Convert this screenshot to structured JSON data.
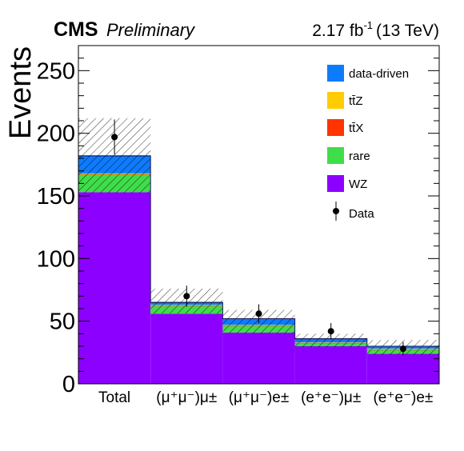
{
  "header": {
    "experiment": "CMS",
    "status": "Preliminary",
    "lumi": "2.17 fb",
    "lumi_exp": "-1",
    "energy": "(13 TeV)"
  },
  "chart_data": {
    "type": "bar",
    "stacked": true,
    "ylabel": "Events",
    "ylim": [
      0,
      270
    ],
    "yticks": [
      0,
      50,
      100,
      150,
      200,
      250
    ],
    "categories": [
      "Total",
      "(μ⁺μ⁻)μ±",
      "(μ⁺μ⁻)e±",
      "(e⁺e⁻)μ±",
      "(e⁺e⁻)e±"
    ],
    "series": [
      {
        "name": "WZ",
        "color": "#8c00ff",
        "values": [
          153,
          56,
          41,
          30,
          24
        ]
      },
      {
        "name": "rare",
        "color": "#3fdd4a",
        "values": [
          14,
          6,
          5,
          2,
          3
        ]
      },
      {
        "name": "ttX",
        "color": "#ff3300",
        "values": [
          0.5,
          0.5,
          0.5,
          0.5,
          0.5
        ]
      },
      {
        "name": "ttZ",
        "color": "#ffcc00",
        "values": [
          0.5,
          0.5,
          0.5,
          0.5,
          0.5
        ]
      },
      {
        "name": "data-driven",
        "color": "#0e7bff",
        "values": [
          14,
          2,
          5,
          3,
          2
        ]
      }
    ],
    "uncertainty": {
      "low": [
        152,
        56,
        40,
        29,
        23
      ],
      "high": [
        212,
        76,
        59,
        40,
        35
      ]
    },
    "data": {
      "name": "Data",
      "values": [
        197,
        70,
        56,
        42,
        28
      ],
      "errors": [
        14,
        8.4,
        7.5,
        6.5,
        5.3
      ]
    },
    "legend": {
      "placement": "top-right",
      "entries": [
        "data-driven",
        "tt̄Z",
        "tt̄X",
        "rare",
        "WZ",
        "Data"
      ]
    },
    "grid": false
  }
}
